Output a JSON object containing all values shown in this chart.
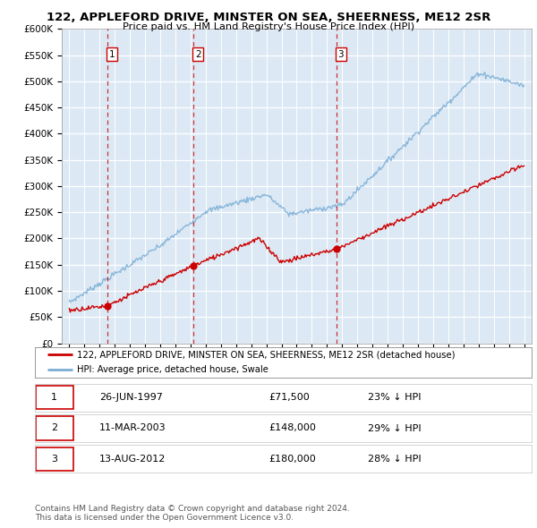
{
  "title": "122, APPLEFORD DRIVE, MINSTER ON SEA, SHEERNESS, ME12 2SR",
  "subtitle": "Price paid vs. HM Land Registry's House Price Index (HPI)",
  "ylim": [
    0,
    600000
  ],
  "yticks": [
    0,
    50000,
    100000,
    150000,
    200000,
    250000,
    300000,
    350000,
    400000,
    450000,
    500000,
    550000,
    600000
  ],
  "ytick_labels": [
    "£0",
    "£50K",
    "£100K",
    "£150K",
    "£200K",
    "£250K",
    "£300K",
    "£350K",
    "£400K",
    "£450K",
    "£500K",
    "£550K",
    "£600K"
  ],
  "xlim_start": 1994.5,
  "xlim_end": 2025.5,
  "background_color": "#ffffff",
  "plot_bg_color": "#dce9f5",
  "grid_color": "#ffffff",
  "sale_color": "#cc0000",
  "hpi_color": "#7aadd4",
  "vline_color": "#cc0000",
  "transactions": [
    {
      "date_year": 1997.49,
      "price": 71500,
      "label": "1"
    },
    {
      "date_year": 2003.19,
      "price": 148000,
      "label": "2"
    },
    {
      "date_year": 2012.62,
      "price": 180000,
      "label": "3"
    }
  ],
  "legend_sale_label": "122, APPLEFORD DRIVE, MINSTER ON SEA, SHEERNESS, ME12 2SR (detached house)",
  "legend_hpi_label": "HPI: Average price, detached house, Swale",
  "table_rows": [
    {
      "num": "1",
      "date": "26-JUN-1997",
      "price": "£71,500",
      "note": "23% ↓ HPI"
    },
    {
      "num": "2",
      "date": "11-MAR-2003",
      "price": "£148,000",
      "note": "29% ↓ HPI"
    },
    {
      "num": "3",
      "date": "13-AUG-2012",
      "price": "£180,000",
      "note": "28% ↓ HPI"
    }
  ],
  "footer": "Contains HM Land Registry data © Crown copyright and database right 2024.\nThis data is licensed under the Open Government Licence v3.0."
}
